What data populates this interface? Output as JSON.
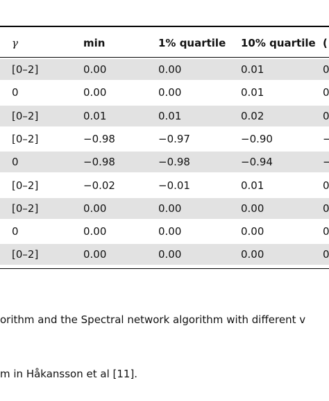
{
  "table": {
    "headers": [
      "γ",
      "min",
      "1% quartile",
      "10% quartile",
      "("
    ],
    "rows": [
      {
        "shaded": true,
        "cells": [
          "[0–2]",
          "0.00",
          "0.00",
          "0.01",
          "0"
        ]
      },
      {
        "shaded": false,
        "cells": [
          "0",
          "0.00",
          "0.00",
          "0.01",
          "0"
        ]
      },
      {
        "shaded": true,
        "cells": [
          "[0–2]",
          "0.01",
          "0.01",
          "0.02",
          "0"
        ]
      },
      {
        "shaded": false,
        "cells": [
          "[0–2]",
          "−0.98",
          "−0.97",
          "−0.90",
          "−"
        ]
      },
      {
        "shaded": true,
        "cells": [
          "0",
          "−0.98",
          "−0.98",
          "−0.94",
          "−"
        ]
      },
      {
        "shaded": false,
        "cells": [
          "[0–2]",
          "−0.02",
          "−0.01",
          "0.01",
          "0"
        ]
      },
      {
        "shaded": true,
        "cells": [
          "[0–2]",
          "0.00",
          "0.00",
          "0.00",
          "0"
        ]
      },
      {
        "shaded": false,
        "cells": [
          "0",
          "0.00",
          "0.00",
          "0.00",
          "0"
        ]
      },
      {
        "shaded": true,
        "cells": [
          "[0–2]",
          "0.00",
          "0.00",
          "0.00",
          "0"
        ]
      }
    ]
  },
  "caption": {
    "line1": "orithm and the Spectral network algorithm with different v",
    "line2": "m in Håkansson et al [11]."
  }
}
